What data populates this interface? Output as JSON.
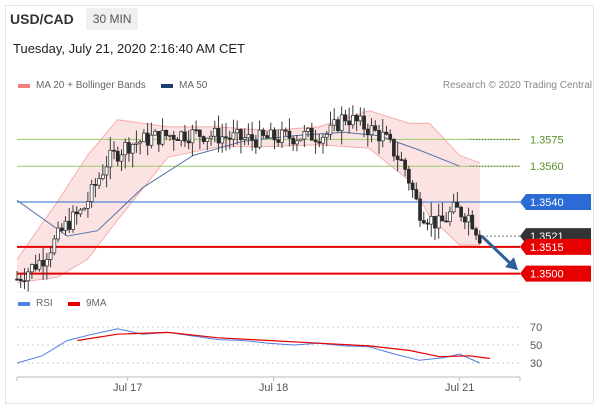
{
  "header": {
    "symbol": "USD/CAD",
    "timeframe": "30 MIN",
    "timestamp": "Tuesday, July 21, 2020 2:16:40 AM CET",
    "credit": "Research © 2020 Trading Central"
  },
  "legend": {
    "bollinger": "MA 20 + Bollinger Bands",
    "ma50": "MA 50",
    "rsi": "RSI",
    "rsi_ma": "9MA"
  },
  "colors": {
    "bollinger": "#f08080",
    "ma50": "#1f3f73",
    "resistance": "#99cc66",
    "pivot": "#2b6bd6",
    "support": "#e60000",
    "current": "#333333",
    "arrow": "#2f5f9a",
    "rsi": "#4f7fe0",
    "rsi_ma": "#e60000"
  },
  "chart_data": [
    {
      "type": "line",
      "subtype": "candlestick",
      "xlabels": [
        "Jul 17",
        "Jul 18",
        "Jul 21"
      ],
      "ylim": [
        1.3492,
        1.3597
      ],
      "levels": [
        {
          "label": "1.3575",
          "value": 1.3575,
          "kind": "resistance"
        },
        {
          "label": "1.3560",
          "value": 1.356,
          "kind": "resistance"
        },
        {
          "label": "1.3540",
          "value": 1.354,
          "kind": "pivot"
        },
        {
          "label": "1.3521",
          "value": 1.3521,
          "kind": "current"
        },
        {
          "label": "1.3515",
          "value": 1.3515,
          "kind": "support"
        },
        {
          "label": "1.3500",
          "value": 1.35,
          "kind": "support"
        }
      ],
      "price_path": [
        [
          0,
          1.3497
        ],
        [
          0.05,
          1.3508
        ],
        [
          0.1,
          1.3528
        ],
        [
          0.13,
          1.3535
        ],
        [
          0.18,
          1.3563
        ],
        [
          0.22,
          1.3572
        ],
        [
          0.27,
          1.3576
        ],
        [
          0.32,
          1.3578
        ],
        [
          0.37,
          1.3578
        ],
        [
          0.42,
          1.3576
        ],
        [
          0.47,
          1.3575
        ],
        [
          0.52,
          1.3576
        ],
        [
          0.57,
          1.3577
        ],
        [
          0.62,
          1.3578
        ],
        [
          0.65,
          1.3588
        ],
        [
          0.7,
          1.3581
        ],
        [
          0.73,
          1.3576
        ],
        [
          0.77,
          1.356
        ],
        [
          0.8,
          1.3535
        ],
        [
          0.84,
          1.3527
        ],
        [
          0.87,
          1.3536
        ],
        [
          0.9,
          1.3532
        ],
        [
          0.92,
          1.3521
        ]
      ],
      "ma50_path": [
        [
          0,
          1.3541
        ],
        [
          0.1,
          1.3521
        ],
        [
          0.16,
          1.3524
        ],
        [
          0.25,
          1.3548
        ],
        [
          0.35,
          1.3566
        ],
        [
          0.45,
          1.3574
        ],
        [
          0.55,
          1.3577
        ],
        [
          0.65,
          1.3579
        ],
        [
          0.72,
          1.3577
        ],
        [
          0.8,
          1.3569
        ],
        [
          0.88,
          1.356
        ]
      ],
      "band_upper": [
        [
          0,
          1.3508
        ],
        [
          0.08,
          1.354
        ],
        [
          0.14,
          1.3566
        ],
        [
          0.2,
          1.3586
        ],
        [
          0.3,
          1.3582
        ],
        [
          0.4,
          1.3582
        ],
        [
          0.5,
          1.358
        ],
        [
          0.6,
          1.3582
        ],
        [
          0.7,
          1.3591
        ],
        [
          0.78,
          1.3584
        ],
        [
          0.82,
          1.3584
        ],
        [
          0.88,
          1.3566
        ],
        [
          0.92,
          1.3562
        ]
      ],
      "band_lower": [
        [
          0,
          1.3495
        ],
        [
          0.08,
          1.3498
        ],
        [
          0.14,
          1.3508
        ],
        [
          0.2,
          1.353
        ],
        [
          0.3,
          1.3565
        ],
        [
          0.4,
          1.3571
        ],
        [
          0.5,
          1.3571
        ],
        [
          0.6,
          1.3572
        ],
        [
          0.7,
          1.357
        ],
        [
          0.78,
          1.3552
        ],
        [
          0.82,
          1.3532
        ],
        [
          0.88,
          1.3516
        ],
        [
          0.92,
          1.3516
        ]
      ],
      "forecast_arrow": {
        "from": [
          0.92,
          1.3521
        ],
        "to": [
          1.0,
          1.3502
        ]
      }
    },
    {
      "type": "line",
      "ylim": [
        20,
        80
      ],
      "yticks": [
        "70",
        "50",
        "30"
      ],
      "series": [
        {
          "name": "RSI",
          "path": [
            [
              0,
              30
            ],
            [
              0.05,
              38
            ],
            [
              0.1,
              55
            ],
            [
              0.15,
              62
            ],
            [
              0.2,
              68
            ],
            [
              0.25,
              62
            ],
            [
              0.3,
              64
            ],
            [
              0.35,
              60
            ],
            [
              0.4,
              56
            ],
            [
              0.45,
              55
            ],
            [
              0.5,
              52
            ],
            [
              0.55,
              50
            ],
            [
              0.6,
              52
            ],
            [
              0.65,
              49
            ],
            [
              0.7,
              48
            ],
            [
              0.75,
              40
            ],
            [
              0.8,
              33
            ],
            [
              0.85,
              36
            ],
            [
              0.88,
              40
            ],
            [
              0.92,
              30
            ]
          ]
        },
        {
          "name": "9MA",
          "path": [
            [
              0.12,
              55
            ],
            [
              0.2,
              62
            ],
            [
              0.3,
              64
            ],
            [
              0.4,
              58
            ],
            [
              0.5,
              55
            ],
            [
              0.6,
              52
            ],
            [
              0.7,
              49
            ],
            [
              0.78,
              44
            ],
            [
              0.84,
              37
            ],
            [
              0.9,
              38
            ],
            [
              0.94,
              35
            ]
          ]
        }
      ]
    }
  ]
}
